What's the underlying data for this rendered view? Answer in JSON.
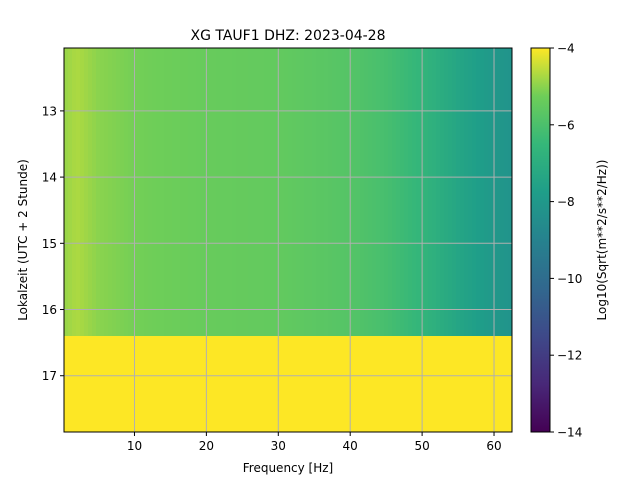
{
  "chart_data": {
    "type": "heatmap",
    "title": "XG TAUF1  DHZ: 2023-04-28",
    "xlabel": "Frequency [Hz]",
    "ylabel": "Lokalzeit (UTC + 2 Stunde)",
    "colorbar_label": "Log10(Sqrt(m**2/s**2/Hz))",
    "xlim": [
      0.2,
      62.5
    ],
    "ylim": [
      17.85,
      12.05
    ],
    "y_inverted": true,
    "x_ticks": [
      10,
      20,
      30,
      40,
      50,
      60
    ],
    "x_tick_labels": [
      "10",
      "20",
      "30",
      "40",
      "50",
      "60"
    ],
    "y_ticks": [
      13,
      14,
      15,
      16,
      17
    ],
    "y_tick_labels": [
      "13",
      "14",
      "15",
      "16",
      "17"
    ],
    "colorbar_range": [
      -14,
      -4
    ],
    "colorbar_ticks": [
      -14,
      -12,
      -10,
      -8,
      -6,
      -4
    ],
    "colorbar_tick_labels": [
      "−14",
      "−12",
      "−10",
      "−8",
      "−6",
      "−4"
    ],
    "colormap": "viridis",
    "grid": true,
    "data_end_time": 16.4,
    "fill_value_after_end": -4,
    "frequency_profile": {
      "frequency": [
        0.2,
        2,
        5,
        10,
        20,
        30,
        40,
        45,
        50,
        55,
        60,
        62.5
      ],
      "log_amplitude": [
        -4.9,
        -4.7,
        -5.0,
        -5.2,
        -5.4,
        -5.5,
        -5.8,
        -6.1,
        -6.6,
        -7.4,
        -8.0,
        -8.2
      ]
    }
  },
  "colors": {
    "grid": "#b0b0b0",
    "background": "#ffffff",
    "axis": "#000000"
  }
}
